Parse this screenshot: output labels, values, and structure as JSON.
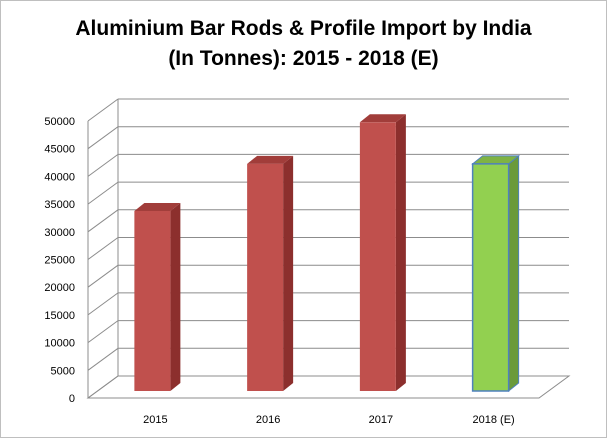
{
  "chart_data": {
    "type": "bar",
    "title_lines": [
      "Aluminium Bar Rods & Profile Import by India",
      "(In Tonnes): 2015 - 2018 (E)"
    ],
    "categories": [
      "2015",
      "2016",
      "2017",
      "2018 (E)"
    ],
    "values": [
      32500,
      41000,
      48500,
      41000
    ],
    "ylim": [
      0,
      50000
    ],
    "y_ticks": [
      "0",
      "5000",
      "10000",
      "15000",
      "20000",
      "25000",
      "30000",
      "35000",
      "40000",
      "45000",
      "50000"
    ],
    "grid": true,
    "legend": false,
    "colors": {
      "actual_front": "#c0504d",
      "actual_side": "#8c2f2d",
      "actual_top": "#a13d3a",
      "estimate_front": "#92d050",
      "estimate_side": "#6a9a3a",
      "estimate_top": "#7fb344",
      "estimate_border": "#4f81bd",
      "grid": "#8c8c8c"
    }
  }
}
